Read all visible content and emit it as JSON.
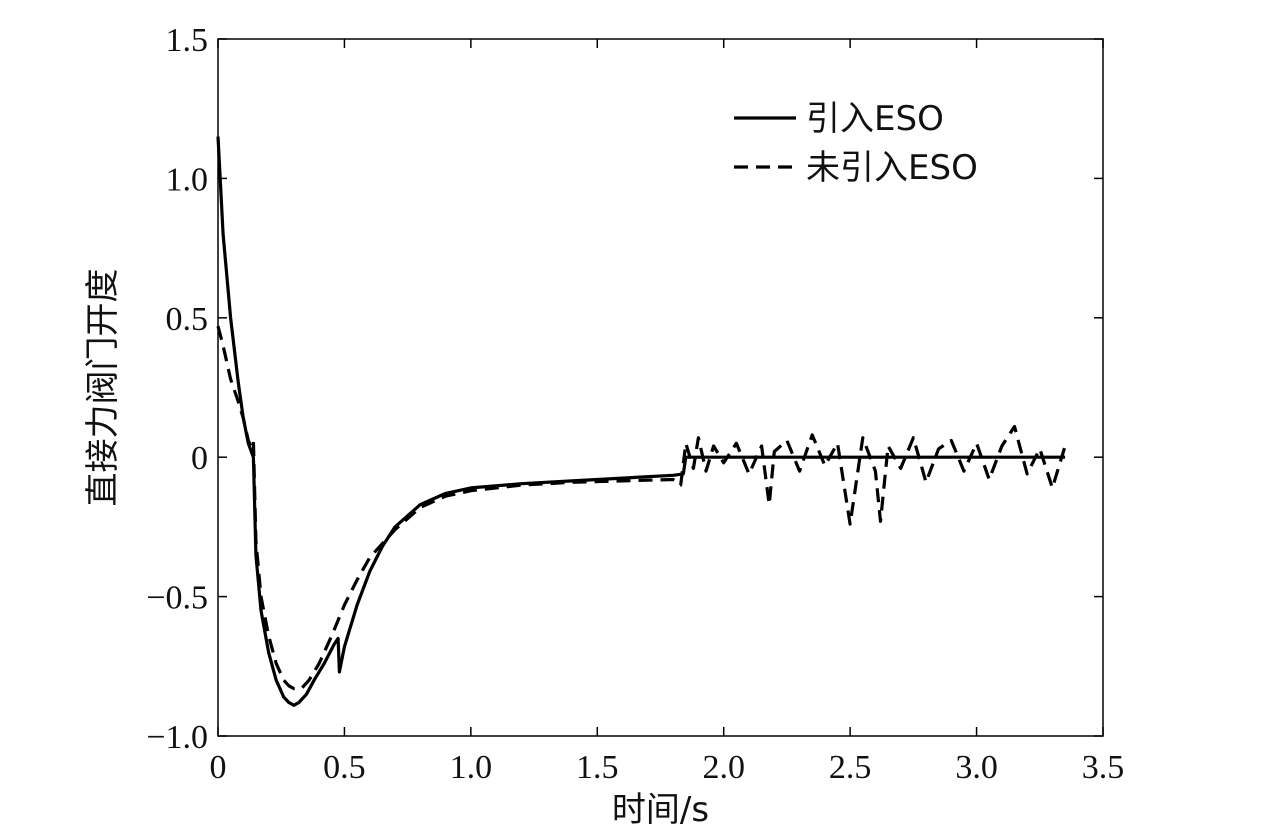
{
  "chart_data": {
    "type": "line",
    "title": "",
    "xlabel": "时间/s",
    "ylabel": "直接力阀门开度",
    "xlim": [
      0,
      3.5
    ],
    "ylim": [
      -1.0,
      1.5
    ],
    "xticks": [
      0,
      0.5,
      1.0,
      1.5,
      2.0,
      2.5,
      3.0,
      3.5
    ],
    "xtick_labels": [
      "0",
      "0.5",
      "1.0",
      "1.5",
      "2.0",
      "2.5",
      "3.0",
      "3.5"
    ],
    "yticks": [
      -1.0,
      -0.5,
      0,
      0.5,
      1.0,
      1.5
    ],
    "ytick_labels": [
      "−1.0",
      "−0.5",
      "0",
      "0.5",
      "1.0",
      "1.5"
    ],
    "grid": false,
    "legend_position": "top-right",
    "series": [
      {
        "name": "引入ESO",
        "style": "solid",
        "color": "#000000",
        "x": [
          0,
          0.02,
          0.05,
          0.08,
          0.1,
          0.12,
          0.14,
          0.15,
          0.17,
          0.2,
          0.23,
          0.26,
          0.28,
          0.3,
          0.32,
          0.35,
          0.38,
          0.42,
          0.46,
          0.475,
          0.48,
          0.5,
          0.55,
          0.6,
          0.65,
          0.7,
          0.8,
          0.9,
          1.0,
          1.2,
          1.4,
          1.6,
          1.8,
          1.84,
          1.85,
          2.0,
          2.5,
          3.0,
          3.35
        ],
        "y": [
          1.15,
          0.8,
          0.5,
          0.27,
          0.14,
          0.05,
          0.0,
          -0.35,
          -0.55,
          -0.7,
          -0.8,
          -0.86,
          -0.88,
          -0.89,
          -0.88,
          -0.85,
          -0.8,
          -0.74,
          -0.67,
          -0.65,
          -0.77,
          -0.68,
          -0.53,
          -0.41,
          -0.32,
          -0.25,
          -0.17,
          -0.13,
          -0.11,
          -0.095,
          -0.085,
          -0.075,
          -0.065,
          -0.06,
          0.0,
          0.0,
          0.0,
          0.0,
          0.0
        ]
      },
      {
        "name": "未引入ESO",
        "style": "dashed",
        "color": "#000000",
        "x": [
          0,
          0.02,
          0.05,
          0.08,
          0.1,
          0.12,
          0.13,
          0.14,
          0.15,
          0.17,
          0.2,
          0.23,
          0.26,
          0.28,
          0.3,
          0.33,
          0.36,
          0.4,
          0.45,
          0.5,
          0.55,
          0.6,
          0.7,
          0.8,
          0.9,
          1.0,
          1.2,
          1.4,
          1.6,
          1.8,
          1.83,
          1.85,
          1.88,
          1.9,
          1.93,
          1.96,
          2.0,
          2.05,
          2.1,
          2.15,
          2.18,
          2.2,
          2.25,
          2.3,
          2.35,
          2.4,
          2.45,
          2.5,
          2.55,
          2.6,
          2.62,
          2.65,
          2.7,
          2.75,
          2.8,
          2.85,
          2.9,
          2.95,
          3.0,
          3.05,
          3.1,
          3.15,
          3.2,
          3.25,
          3.3,
          3.35
        ],
        "y": [
          0.47,
          0.4,
          0.28,
          0.2,
          0.14,
          0.06,
          0.04,
          0.06,
          -0.3,
          -0.5,
          -0.64,
          -0.74,
          -0.8,
          -0.82,
          -0.83,
          -0.83,
          -0.8,
          -0.74,
          -0.64,
          -0.53,
          -0.44,
          -0.36,
          -0.26,
          -0.18,
          -0.14,
          -0.12,
          -0.1,
          -0.09,
          -0.085,
          -0.08,
          -0.1,
          0.05,
          -0.04,
          0.07,
          -0.05,
          0.04,
          -0.02,
          0.05,
          -0.06,
          0.04,
          -0.17,
          0.02,
          0.06,
          -0.05,
          0.08,
          -0.03,
          0.05,
          -0.24,
          0.07,
          -0.05,
          -0.23,
          0.04,
          -0.04,
          0.07,
          -0.09,
          0.03,
          0.06,
          -0.05,
          0.05,
          -0.08,
          0.04,
          0.11,
          -0.06,
          0.03,
          -0.11,
          0.04
        ]
      }
    ]
  }
}
